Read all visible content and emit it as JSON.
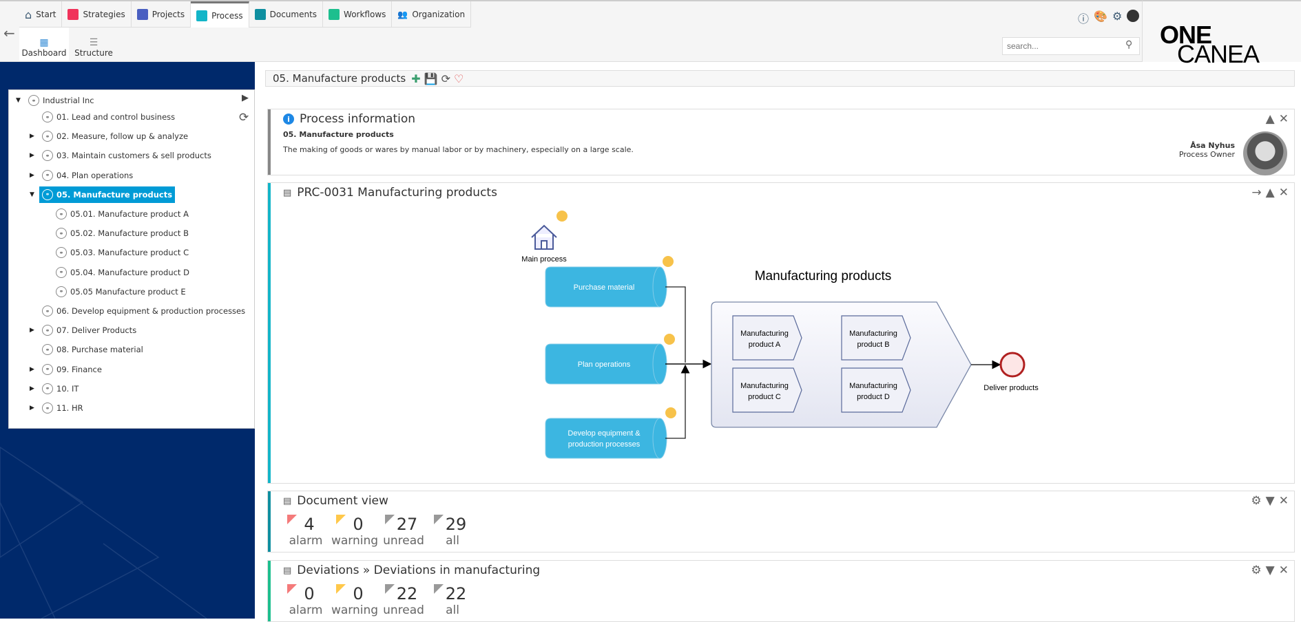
{
  "nav": {
    "tabs": [
      {
        "label": "Start",
        "icon": "home-icon",
        "color": "#3d5a73"
      },
      {
        "label": "Strategies",
        "icon": "strategies-icon",
        "color": "#f0335b"
      },
      {
        "label": "Projects",
        "icon": "projects-icon",
        "color": "#4a5fc1"
      },
      {
        "label": "Process",
        "icon": "process-icon",
        "color": "#13b5c8",
        "active": true
      },
      {
        "label": "Documents",
        "icon": "documents-icon",
        "color": "#0f8fa0"
      },
      {
        "label": "Workflows",
        "icon": "workflows-icon",
        "color": "#1dbf8e"
      },
      {
        "label": "Organization",
        "icon": "organization-icon",
        "color": "#3d7aa3"
      }
    ],
    "subtabs": [
      {
        "label": "Dashboard",
        "active": true
      },
      {
        "label": "Structure"
      }
    ],
    "search_placeholder": "search...",
    "logo": {
      "light": "CANEA ",
      "bold": "ONE"
    }
  },
  "tree": {
    "root": "Industrial Inc",
    "items": [
      {
        "label": "01. Lead and control business",
        "expandable": false
      },
      {
        "label": "02. Measure, follow up & analyze",
        "expandable": true
      },
      {
        "label": "03. Maintain customers & sell products",
        "expandable": true
      },
      {
        "label": "04. Plan operations",
        "expandable": true
      },
      {
        "label": "05. Manufacture products",
        "expanded": true,
        "selected": true
      },
      {
        "label": "05.01. Manufacture product A",
        "child": true
      },
      {
        "label": "05.02. Manufacture product B",
        "child": true
      },
      {
        "label": "05.03. Manufacture product C",
        "child": true
      },
      {
        "label": "05.04. Manufacture product D",
        "child": true
      },
      {
        "label": "05.05 Manufacture product E",
        "child": true
      },
      {
        "label": "06. Develop equipment & production processes",
        "expandable": false
      },
      {
        "label": "07. Deliver Products",
        "expandable": true
      },
      {
        "label": "08. Purchase material",
        "expandable": false
      },
      {
        "label": "09. Finance",
        "expandable": true
      },
      {
        "label": "10. IT",
        "expandable": true
      },
      {
        "label": "11. HR",
        "expandable": true
      }
    ]
  },
  "breadcrumb": {
    "title": "05. Manufacture products"
  },
  "process_info": {
    "title": "Process information",
    "name": "05. Manufacture products",
    "description": "The making of goods or wares by manual labor or by machinery, especially on a large scale.",
    "owner_name": "Åsa Nyhus",
    "owner_role": "Process Owner"
  },
  "diagram_panel": {
    "title": "PRC-0031 Manufacturing products",
    "main_process": "Main process",
    "group_title": "Manufacturing products",
    "inputs": [
      [
        "Purchase material"
      ],
      [
        "Plan operations"
      ],
      [
        "Develop equipment &",
        "production processes"
      ]
    ],
    "subprocesses": [
      [
        "Manufacturing",
        "product A"
      ],
      [
        "Manufacturing",
        "product B"
      ],
      [
        "Manufacturing",
        "product C"
      ],
      [
        "Manufacturing",
        "product D"
      ]
    ],
    "end_event": "Deliver products"
  },
  "widgets": [
    {
      "title": "Document view",
      "accent": "#0f8fa0",
      "stats": [
        {
          "value": "4",
          "label": "alarm",
          "color": "#f47a7a"
        },
        {
          "value": "0",
          "label": "warning",
          "color": "#ffc84a"
        },
        {
          "value": "27",
          "label": "unread",
          "color": "#999999"
        },
        {
          "value": "29",
          "label": "all",
          "color": "#999999"
        }
      ]
    },
    {
      "title": "Deviations » Deviations in manufacturing",
      "accent": "#1dbf8e",
      "stats": [
        {
          "value": "0",
          "label": "alarm",
          "color": "#f47a7a"
        },
        {
          "value": "0",
          "label": "warning",
          "color": "#ffc84a"
        },
        {
          "value": "22",
          "label": "unread",
          "color": "#999999"
        },
        {
          "value": "22",
          "label": "all",
          "color": "#999999"
        }
      ]
    }
  ]
}
